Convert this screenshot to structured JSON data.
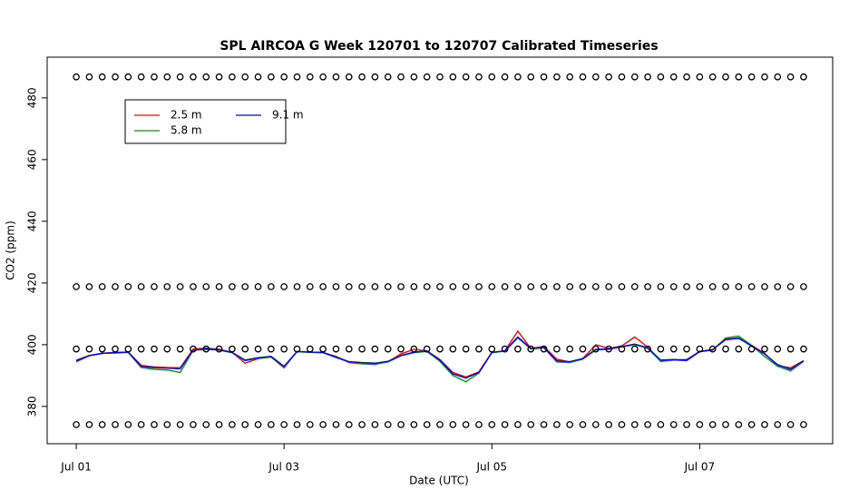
{
  "chart_data": {
    "type": "line",
    "title": "SPL AIRCOA G  Week 120701 to 120707  Calibrated Timeseries",
    "x_label": "Date (UTC)",
    "y_label": "CO2 (ppm)",
    "x": [
      0,
      0.125,
      0.25,
      0.375,
      0.5,
      0.625,
      0.75,
      0.875,
      1,
      1.125,
      1.25,
      1.375,
      1.5,
      1.625,
      1.75,
      1.875,
      2,
      2.125,
      2.25,
      2.375,
      2.5,
      2.625,
      2.75,
      2.875,
      3,
      3.125,
      3.25,
      3.375,
      3.5,
      3.625,
      3.75,
      3.875,
      4,
      4.125,
      4.25,
      4.375,
      4.5,
      4.625,
      4.75,
      4.875,
      5,
      5.125,
      5.25,
      5.375,
      5.5,
      5.625,
      5.75,
      5.875,
      6,
      6.125,
      6.25,
      6.375,
      6.5,
      6.625,
      6.75,
      6.875,
      7
    ],
    "series": [
      {
        "name": "2.5 m",
        "color": "#ff0000",
        "values": [
          394.5,
          396.4,
          397.2,
          397.5,
          397.6,
          393.3,
          392.8,
          392.6,
          392.5,
          398.6,
          398.9,
          398.5,
          397.5,
          394.0,
          395.5,
          396.0,
          392.5,
          397.8,
          397.6,
          397.4,
          396.2,
          394.2,
          393.8,
          393.6,
          394.5,
          397.0,
          398.5,
          398.0,
          395.2,
          391.0,
          389.5,
          391.2,
          397.5,
          398.0,
          404.4,
          398.8,
          399.4,
          395.3,
          394.4,
          395.5,
          400.0,
          398.8,
          399.6,
          402.5,
          399.2,
          394.6,
          395.0,
          395.2,
          397.8,
          398.4,
          401.6,
          402.0,
          399.8,
          397.2,
          393.2,
          392.5,
          394.8
        ]
      },
      {
        "name": "5.8 m",
        "color": "#00a000",
        "values": [
          395.0,
          396.5,
          397.2,
          397.3,
          397.5,
          392.6,
          392.0,
          391.8,
          391.0,
          398.2,
          398.5,
          398.2,
          397.4,
          394.8,
          395.6,
          396.0,
          392.8,
          397.7,
          397.5,
          397.4,
          395.8,
          394.4,
          394.0,
          393.8,
          394.4,
          396.4,
          397.4,
          397.8,
          394.6,
          390.0,
          388.0,
          390.8,
          397.4,
          397.9,
          402.2,
          398.6,
          399.0,
          394.4,
          394.2,
          395.3,
          398.3,
          398.5,
          399.3,
          400.0,
          398.8,
          394.6,
          395.0,
          394.8,
          397.7,
          398.2,
          402.2,
          402.8,
          399.8,
          396.2,
          393.0,
          391.5,
          394.6
        ]
      },
      {
        "name": "9.1 m",
        "color": "#0000ff",
        "values": [
          394.8,
          396.5,
          397.2,
          397.4,
          397.6,
          393.0,
          392.5,
          392.4,
          392.2,
          398.2,
          398.6,
          398.4,
          397.5,
          395.0,
          395.8,
          396.2,
          393.0,
          397.8,
          397.6,
          397.5,
          396.0,
          394.5,
          394.2,
          394.0,
          394.6,
          396.5,
          397.6,
          398.0,
          395.0,
          390.5,
          389.2,
          391.0,
          397.5,
          398.0,
          402.5,
          398.8,
          399.2,
          394.8,
          394.5,
          395.5,
          398.5,
          398.6,
          399.4,
          400.2,
          399.0,
          395.0,
          395.2,
          395.0,
          397.8,
          398.4,
          401.8,
          402.2,
          399.5,
          397.0,
          393.5,
          392.0,
          394.8
        ]
      },
      {
        "color": "#000000",
        "marker": "circle",
        "values": [
          486.8,
          486.8,
          486.8,
          486.8,
          486.8,
          486.8,
          486.8,
          486.8,
          486.8,
          486.8,
          486.8,
          486.8,
          486.8,
          486.8,
          486.8,
          486.8,
          486.8,
          486.8,
          486.8,
          486.8,
          486.8,
          486.8,
          486.8,
          486.8,
          486.8,
          486.8,
          486.8,
          486.8,
          486.8,
          486.8,
          486.8,
          486.8,
          486.8,
          486.8,
          486.8,
          486.8,
          486.8,
          486.8,
          486.8,
          486.8,
          486.8,
          486.8,
          486.8,
          486.8,
          486.8,
          486.8,
          486.8,
          486.8,
          486.8,
          486.8,
          486.8,
          486.8,
          486.8,
          486.8,
          486.8,
          486.8,
          486.8
        ]
      },
      {
        "color": "#000000",
        "marker": "circle",
        "values": [
          418.8,
          418.8,
          418.8,
          418.8,
          418.8,
          418.8,
          418.8,
          418.8,
          418.8,
          418.8,
          418.8,
          418.8,
          418.8,
          418.8,
          418.8,
          418.8,
          418.8,
          418.8,
          418.8,
          418.8,
          418.8,
          418.8,
          418.8,
          418.8,
          418.8,
          418.8,
          418.8,
          418.8,
          418.8,
          418.8,
          418.8,
          418.8,
          418.8,
          418.8,
          418.8,
          418.8,
          418.8,
          418.8,
          418.8,
          418.8,
          418.8,
          418.8,
          418.8,
          418.8,
          418.8,
          418.8,
          418.8,
          418.8,
          418.8,
          418.8,
          418.8,
          418.8,
          418.8,
          418.8,
          418.8,
          418.8,
          418.8
        ]
      },
      {
        "color": "#000000",
        "marker": "circle",
        "values": [
          398.6,
          398.6,
          398.6,
          398.6,
          398.6,
          398.6,
          398.6,
          398.6,
          398.6,
          398.6,
          398.6,
          398.6,
          398.6,
          398.6,
          398.6,
          398.6,
          398.6,
          398.6,
          398.6,
          398.6,
          398.6,
          398.6,
          398.6,
          398.6,
          398.6,
          398.6,
          398.6,
          398.6,
          398.6,
          398.6,
          398.6,
          398.6,
          398.6,
          398.6,
          398.6,
          398.6,
          398.6,
          398.6,
          398.6,
          398.6,
          398.6,
          398.6,
          398.6,
          398.6,
          398.6,
          398.6,
          398.6,
          398.6,
          398.6,
          398.6,
          398.6,
          398.6,
          398.6,
          398.6,
          398.6,
          398.6,
          398.6
        ]
      },
      {
        "color": "#000000",
        "marker": "circle",
        "values": [
          374.1,
          374.1,
          374.1,
          374.1,
          374.1,
          374.1,
          374.1,
          374.1,
          374.1,
          374.1,
          374.1,
          374.1,
          374.1,
          374.1,
          374.1,
          374.1,
          374.1,
          374.1,
          374.1,
          374.1,
          374.1,
          374.1,
          374.1,
          374.1,
          374.1,
          374.1,
          374.1,
          374.1,
          374.1,
          374.1,
          374.1,
          374.1,
          374.1,
          374.1,
          374.1,
          374.1,
          374.1,
          374.1,
          374.1,
          374.1,
          374.1,
          374.1,
          374.1,
          374.1,
          374.1,
          374.1,
          374.1,
          374.1,
          374.1,
          374.1,
          374.1,
          374.1,
          374.1,
          374.1,
          374.1,
          374.1,
          374.1
        ]
      }
    ],
    "xlim": [
      -0.28,
      7.28
    ],
    "ylim": [
      367.9,
      493.2
    ],
    "xticks": [
      {
        "value": 0,
        "label": "Jul 01"
      },
      {
        "value": 2,
        "label": "Jul 03"
      },
      {
        "value": 4,
        "label": "Jul 05"
      },
      {
        "value": 6,
        "label": "Jul 07"
      }
    ],
    "yticks": [
      380,
      400,
      420,
      440,
      460,
      480
    ],
    "grid": false,
    "legend": "top-left"
  }
}
